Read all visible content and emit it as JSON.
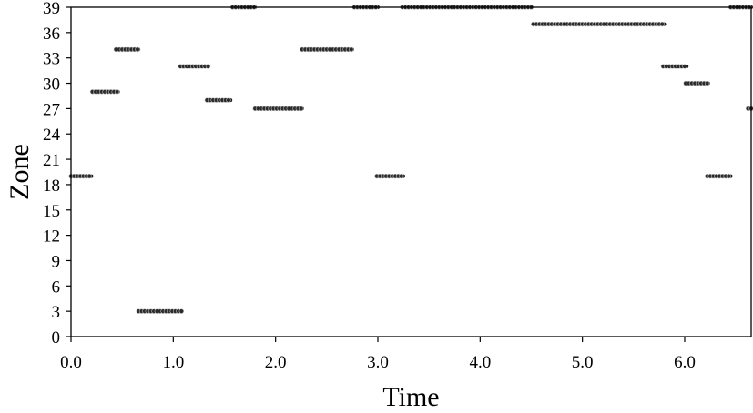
{
  "chart_data": {
    "type": "scatter",
    "title": "",
    "xlabel": "Time",
    "ylabel": "Zone",
    "xlim": [
      0.0,
      6.65
    ],
    "ylim": [
      0,
      39
    ],
    "xticks": [
      "0.0",
      "1.0",
      "2.0",
      "3.0",
      "4.0",
      "5.0",
      "6.0"
    ],
    "xtick_values": [
      0,
      1,
      2,
      3,
      4,
      5,
      6
    ],
    "yticks": [
      "0",
      "3",
      "6",
      "9",
      "12",
      "15",
      "18",
      "21",
      "24",
      "27",
      "30",
      "33",
      "36",
      "39"
    ],
    "ytick_values": [
      0,
      3,
      6,
      9,
      12,
      15,
      18,
      21,
      24,
      27,
      30,
      33,
      36,
      39
    ],
    "grid": false,
    "legend": "none",
    "marker_color": "#1a1a1a",
    "point_spacing": 0.03,
    "segments": [
      {
        "x_start": 0.0,
        "x_end": 0.2,
        "zone": 19
      },
      {
        "x_start": 0.21,
        "x_end": 0.46,
        "zone": 29
      },
      {
        "x_start": 0.44,
        "x_end": 0.66,
        "zone": 34
      },
      {
        "x_start": 0.66,
        "x_end": 1.08,
        "zone": 3
      },
      {
        "x_start": 1.07,
        "x_end": 1.34,
        "zone": 32
      },
      {
        "x_start": 1.33,
        "x_end": 1.56,
        "zone": 28
      },
      {
        "x_start": 1.58,
        "x_end": 1.8,
        "zone": 39
      },
      {
        "x_start": 1.8,
        "x_end": 2.26,
        "zone": 27
      },
      {
        "x_start": 2.26,
        "x_end": 2.75,
        "zone": 34
      },
      {
        "x_start": 2.77,
        "x_end": 3.0,
        "zone": 39
      },
      {
        "x_start": 2.99,
        "x_end": 3.25,
        "zone": 19
      },
      {
        "x_start": 3.24,
        "x_end": 4.5,
        "zone": 39
      },
      {
        "x_start": 4.52,
        "x_end": 5.8,
        "zone": 37
      },
      {
        "x_start": 5.79,
        "x_end": 6.02,
        "zone": 32
      },
      {
        "x_start": 6.01,
        "x_end": 6.23,
        "zone": 30
      },
      {
        "x_start": 6.22,
        "x_end": 6.45,
        "zone": 19
      },
      {
        "x_start": 6.45,
        "x_end": 6.66,
        "zone": 39
      },
      {
        "x_start": 6.62,
        "x_end": 6.68,
        "zone": 27
      }
    ]
  }
}
